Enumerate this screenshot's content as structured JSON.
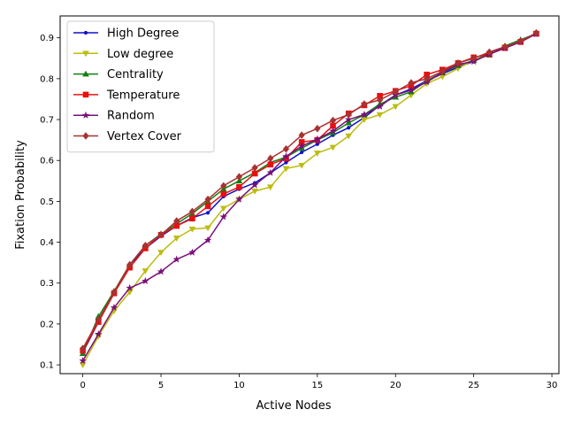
{
  "chart_data": {
    "type": "line",
    "title": "",
    "xlabel": "Active Nodes",
    "ylabel": "Fixation Probability",
    "xlim": [
      -1.45,
      30.45
    ],
    "ylim": [
      0.0785,
      0.9535
    ],
    "xticks": [
      0,
      5,
      10,
      15,
      20,
      25,
      30
    ],
    "yticks": [
      0.1,
      0.2,
      0.3,
      0.4,
      0.5,
      0.6,
      0.7,
      0.8,
      0.9
    ],
    "grid": false,
    "legend_position": "top-left",
    "x": [
      0,
      1,
      2,
      3,
      4,
      5,
      6,
      7,
      8,
      9,
      10,
      11,
      12,
      13,
      14,
      15,
      16,
      17,
      18,
      19,
      20,
      21,
      22,
      23,
      24,
      25,
      26,
      27,
      28,
      29
    ],
    "series": [
      {
        "name": "High Degree",
        "color": "#1010c8",
        "marker": "point",
        "values": [
          0.13,
          0.205,
          0.275,
          0.345,
          0.385,
          0.415,
          0.44,
          0.46,
          0.472,
          0.512,
          0.53,
          0.545,
          0.57,
          0.595,
          0.62,
          0.64,
          0.662,
          0.68,
          0.705,
          0.735,
          0.76,
          0.775,
          0.795,
          0.812,
          0.828,
          0.842,
          0.865,
          0.878,
          0.89,
          0.912
        ]
      },
      {
        "name": "Low degree",
        "color": "#bcbc10",
        "marker": "triangle-down",
        "values": [
          0.1,
          0.17,
          0.232,
          0.278,
          0.33,
          0.375,
          0.41,
          0.432,
          0.435,
          0.483,
          0.505,
          0.525,
          0.535,
          0.58,
          0.588,
          0.618,
          0.632,
          0.66,
          0.7,
          0.712,
          0.732,
          0.76,
          0.788,
          0.805,
          0.825,
          0.845,
          0.86,
          0.878,
          0.89,
          0.91
        ]
      },
      {
        "name": "Centrality",
        "color": "#108010",
        "marker": "triangle-up",
        "values": [
          0.128,
          0.218,
          0.28,
          0.345,
          0.392,
          0.42,
          0.445,
          0.47,
          0.5,
          0.53,
          0.55,
          0.57,
          0.595,
          0.608,
          0.63,
          0.65,
          0.668,
          0.692,
          0.712,
          0.738,
          0.755,
          0.768,
          0.795,
          0.815,
          0.832,
          0.845,
          0.858,
          0.88,
          0.895,
          0.91
        ]
      },
      {
        "name": "Temperature",
        "color": "#e81010",
        "marker": "square",
        "values": [
          0.135,
          0.205,
          0.275,
          0.338,
          0.385,
          0.418,
          0.44,
          0.458,
          0.488,
          0.518,
          0.535,
          0.568,
          0.59,
          0.605,
          0.645,
          0.65,
          0.685,
          0.715,
          0.735,
          0.758,
          0.77,
          0.783,
          0.81,
          0.822,
          0.838,
          0.852,
          0.86,
          0.875,
          0.89,
          0.91
        ]
      },
      {
        "name": "Random",
        "color": "#7a107a",
        "marker": "star",
        "values": [
          0.11,
          0.175,
          0.24,
          0.288,
          0.305,
          0.328,
          0.358,
          0.375,
          0.405,
          0.462,
          0.505,
          0.54,
          0.57,
          0.61,
          0.635,
          0.652,
          0.672,
          0.7,
          0.712,
          0.732,
          0.76,
          0.772,
          0.792,
          0.815,
          0.835,
          0.842,
          0.86,
          0.875,
          0.89,
          0.91
        ]
      },
      {
        "name": "Vertex Cover",
        "color": "#a83232",
        "marker": "diamond",
        "values": [
          0.14,
          0.21,
          0.278,
          0.345,
          0.392,
          0.418,
          0.452,
          0.475,
          0.505,
          0.538,
          0.56,
          0.582,
          0.605,
          0.628,
          0.662,
          0.678,
          0.698,
          0.712,
          0.738,
          0.748,
          0.768,
          0.79,
          0.8,
          0.818,
          0.838,
          0.85,
          0.865,
          0.878,
          0.892,
          0.912
        ]
      }
    ]
  }
}
